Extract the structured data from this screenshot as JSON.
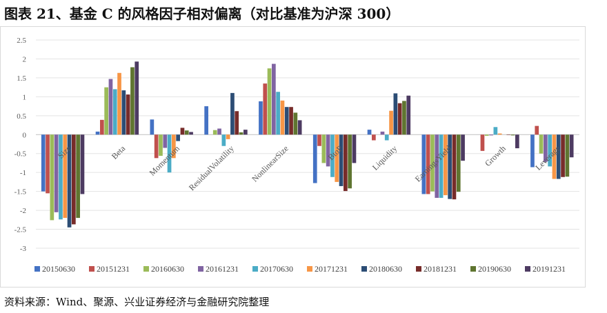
{
  "title": "图表 21、基金 C 的风格因子相对偏离（对比基准为沪深 300）",
  "source": "资料来源：Wind、聚源、兴业证券经济与金融研究院整理",
  "chart_data": {
    "type": "bar",
    "categories": [
      "Size",
      "Beta",
      "Momentum",
      "ResidualVolatility",
      "NonlinearSize",
      "BtoP",
      "Liquidity",
      "EarningsYield",
      "Growth",
      "Leverage"
    ],
    "ylim": [
      -3,
      2.5
    ],
    "yticks": [
      "2.5",
      "2",
      "1.5",
      "1",
      "0.5",
      "0",
      "-0.5",
      "-1",
      "-1.5",
      "-2",
      "-2.5",
      "-3"
    ],
    "ytick_values": [
      2.5,
      2,
      1.5,
      1,
      0.5,
      0,
      -0.5,
      -1,
      -1.5,
      -2,
      -2.5,
      -3
    ],
    "legend_position": "bottom",
    "grid": true,
    "series": [
      {
        "name": "20150630",
        "color": "#4472C4",
        "values": [
          -1.5,
          0.08,
          0.4,
          0.75,
          0.88,
          -1.28,
          0.13,
          -1.57,
          0.0,
          -0.86
        ]
      },
      {
        "name": "20151231",
        "color": "#C0504D",
        "values": [
          -1.55,
          0.39,
          -0.62,
          0.0,
          1.35,
          -0.3,
          -0.15,
          -1.57,
          -0.43,
          0.23
        ]
      },
      {
        "name": "20160630",
        "color": "#9BBB59",
        "values": [
          -2.26,
          1.25,
          -0.56,
          0.12,
          1.75,
          -0.75,
          0.0,
          -1.5,
          -0.03,
          -0.5
        ]
      },
      {
        "name": "20161231",
        "color": "#8064A2",
        "values": [
          -2.05,
          1.47,
          -0.35,
          0.16,
          1.87,
          -0.84,
          0.08,
          -1.67,
          -0.02,
          -0.72
        ]
      },
      {
        "name": "20170630",
        "color": "#4BACC6",
        "values": [
          -2.24,
          1.2,
          -1.0,
          -0.3,
          1.13,
          -1.12,
          -0.15,
          -1.67,
          0.2,
          -0.84
        ]
      },
      {
        "name": "20171231",
        "color": "#F79646",
        "values": [
          -2.2,
          1.63,
          -0.62,
          -0.12,
          0.9,
          -1.25,
          0.63,
          -1.6,
          0.03,
          -1.17
        ]
      },
      {
        "name": "20180630",
        "color": "#2C4D75",
        "values": [
          -2.45,
          1.17,
          -0.17,
          1.1,
          0.73,
          -1.36,
          1.09,
          -1.7,
          0.0,
          -1.17
        ]
      },
      {
        "name": "20181231",
        "color": "#772C2A",
        "values": [
          -2.37,
          1.06,
          0.18,
          0.62,
          0.73,
          -1.49,
          0.83,
          -1.71,
          -0.01,
          -1.12
        ]
      },
      {
        "name": "20190630",
        "color": "#5F7530",
        "values": [
          -2.2,
          1.78,
          0.11,
          0.06,
          0.58,
          -1.42,
          0.89,
          -1.51,
          -0.02,
          -1.11
        ]
      },
      {
        "name": "20191231",
        "color": "#4D3B62",
        "values": [
          -1.57,
          1.93,
          0.07,
          0.13,
          0.38,
          -0.75,
          1.03,
          -0.69,
          -0.36,
          -0.6
        ]
      }
    ]
  }
}
